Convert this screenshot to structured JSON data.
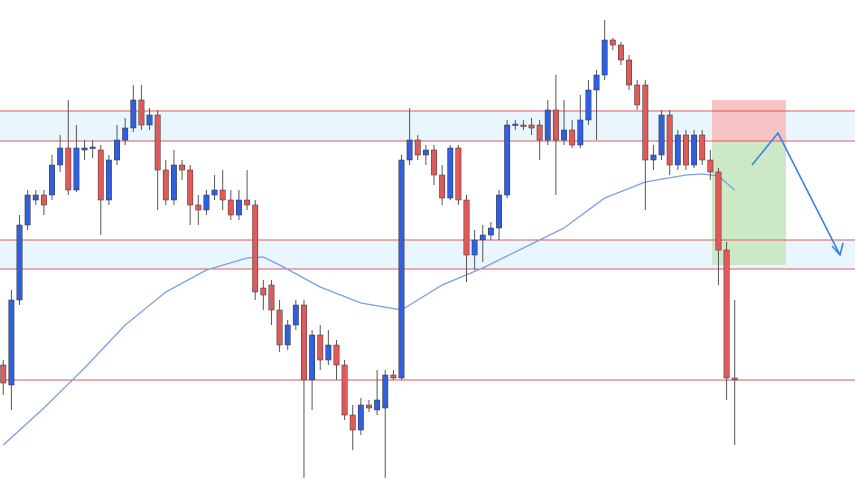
{
  "chart_data": {
    "type": "candlestick",
    "xlim": [
      -0.4,
      104.8
    ],
    "ylim": [
      0,
      480
    ],
    "up_color": "#3060e0",
    "down_color": "#e05a5a",
    "candles": {
      "open": [
        115,
        95,
        180,
        255,
        280,
        285,
        285,
        315,
        332,
        290,
        330,
        332,
        330,
        280,
        320,
        340,
        352,
        380,
        355,
        365,
        310,
        280,
        315,
        310,
        275,
        270,
        285,
        290,
        280,
        265,
        280,
        275,
        192,
        195,
        170,
        135,
        155,
        175,
        100,
        145,
        120,
        135,
        115,
        65,
        50,
        75,
        70,
        72,
        105,
        102,
        320,
        340,
        325,
        330,
        305,
        282,
        332,
        280,
        225,
        240,
        245,
        252,
        285,
        355,
        355,
        355,
        355,
        340,
        370,
        340,
        350,
        335,
        360,
        390,
        405,
        440,
        435,
        420,
        395,
        395,
        320,
        325,
        365,
        315,
        345,
        315,
        345,
        320,
        308,
        230,
        102
      ],
      "high": [
        120,
        190,
        265,
        290,
        290,
        290,
        325,
        345,
        380,
        355,
        340,
        340,
        335,
        325,
        355,
        362,
        395,
        395,
        372,
        370,
        320,
        330,
        320,
        315,
        285,
        290,
        305,
        310,
        290,
        290,
        310,
        280,
        200,
        200,
        180,
        160,
        180,
        180,
        150,
        155,
        150,
        140,
        120,
        75,
        82,
        80,
        110,
        110,
        110,
        325,
        372,
        345,
        335,
        335,
        315,
        335,
        335,
        285,
        250,
        255,
        258,
        290,
        360,
        360,
        360,
        362,
        360,
        380,
        405,
        380,
        360,
        385,
        400,
        410,
        460,
        442,
        438,
        425,
        400,
        400,
        335,
        370,
        370,
        350,
        350,
        350,
        350,
        330,
        312,
        238,
        180
      ],
      "low": [
        85,
        70,
        175,
        250,
        275,
        265,
        280,
        308,
        285,
        288,
        320,
        322,
        245,
        275,
        315,
        335,
        348,
        350,
        350,
        270,
        275,
        275,
        300,
        255,
        255,
        265,
        280,
        270,
        260,
        260,
        270,
        180,
        170,
        155,
        128,
        130,
        150,
        2,
        70,
        110,
        115,
        100,
        60,
        30,
        45,
        68,
        65,
        2,
        100,
        100,
        315,
        320,
        315,
        295,
        275,
        280,
        275,
        198,
        210,
        218,
        240,
        240,
        282,
        350,
        350,
        345,
        320,
        335,
        285,
        335,
        332,
        332,
        355,
        340,
        400,
        430,
        415,
        390,
        370,
        270,
        310,
        320,
        305,
        310,
        310,
        312,
        315,
        300,
        195,
        80,
        35
      ],
      "close": [
        97,
        180,
        255,
        285,
        285,
        275,
        315,
        332,
        290,
        332,
        332,
        333,
        280,
        320,
        340,
        352,
        380,
        355,
        365,
        310,
        280,
        315,
        310,
        275,
        270,
        285,
        290,
        280,
        265,
        280,
        275,
        188,
        185,
        170,
        135,
        155,
        175,
        100,
        145,
        120,
        135,
        115,
        65,
        50,
        75,
        72,
        80,
        105,
        102,
        320,
        340,
        325,
        330,
        305,
        282,
        332,
        280,
        225,
        240,
        245,
        252,
        285,
        355,
        356,
        354,
        352,
        340,
        370,
        340,
        350,
        335,
        360,
        390,
        405,
        440,
        435,
        420,
        395,
        375,
        320,
        325,
        365,
        315,
        345,
        315,
        345,
        320,
        308,
        230,
        102,
        100
      ]
    },
    "ma": {
      "color": "#7b9fe6",
      "x": [
        0,
        5,
        10,
        15,
        20,
        25,
        30,
        32,
        34,
        39,
        44,
        49,
        54,
        59,
        64,
        69,
        74,
        79,
        84,
        86,
        88,
        90
      ],
      "values": [
        35,
        72,
        112,
        155,
        188,
        210,
        222,
        223,
        215,
        193,
        177,
        170,
        195,
        212,
        232,
        252,
        282,
        298,
        305,
        306,
        304,
        290
      ]
    },
    "levels": [
      369,
      339,
      240,
      211,
      100
    ],
    "level_color": "#e05a5a",
    "zones": [
      [
        369,
        339
      ],
      [
        240,
        211
      ]
    ],
    "zone_color": "#eaf6fd",
    "position": {
      "stop": 380,
      "entry": 339,
      "target": 215,
      "loss_color": "#f6c4c4",
      "profit_color": "#cbe9c6"
    }
  }
}
